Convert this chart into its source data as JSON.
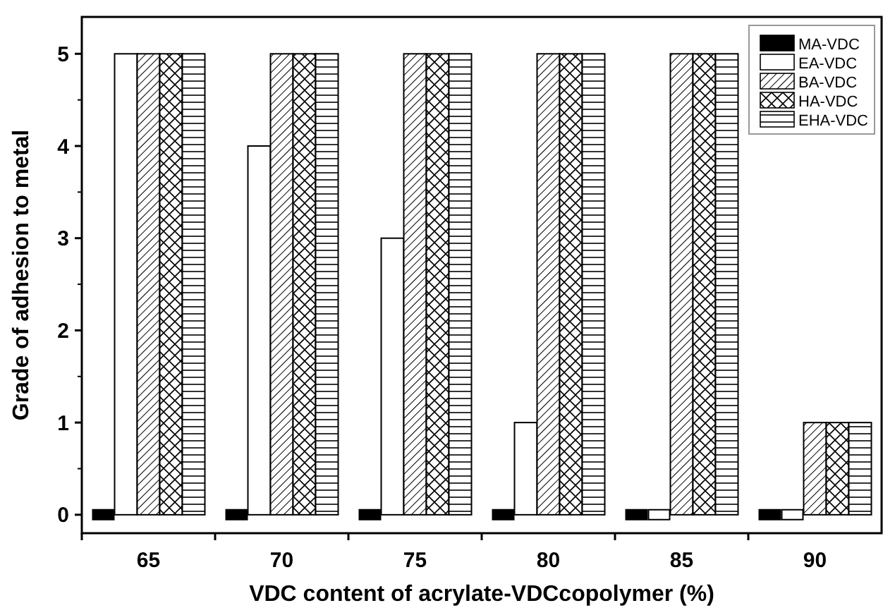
{
  "chart_data": {
    "type": "bar",
    "xlabel": "VDC content of acrylate-VDCcopolymer (%)",
    "ylabel": "Grade of adhesion to metal",
    "categories": [
      "65",
      "70",
      "75",
      "80",
      "85",
      "90"
    ],
    "series": [
      {
        "name": "MA-VDC",
        "color": "#000000",
        "values": [
          0,
          0,
          0,
          0,
          0,
          0
        ]
      },
      {
        "name": "EA-VDC",
        "color": "#ffffff",
        "values": [
          5,
          4,
          3,
          1,
          0,
          0
        ]
      },
      {
        "name": "BA-VDC",
        "color": "#000000",
        "values": [
          5,
          5,
          5,
          5,
          5,
          1
        ]
      },
      {
        "name": "HA-VDC",
        "color": "#000000",
        "values": [
          5,
          5,
          5,
          5,
          5,
          1
        ]
      },
      {
        "name": "EHA-VDC",
        "color": "#000000",
        "values": [
          5,
          5,
          5,
          5,
          5,
          1
        ]
      }
    ],
    "ylim": [
      -0.2,
      5.4
    ],
    "yticks": [
      0,
      1,
      2,
      3,
      4,
      5
    ],
    "legend": "top right",
    "grid": false
  }
}
